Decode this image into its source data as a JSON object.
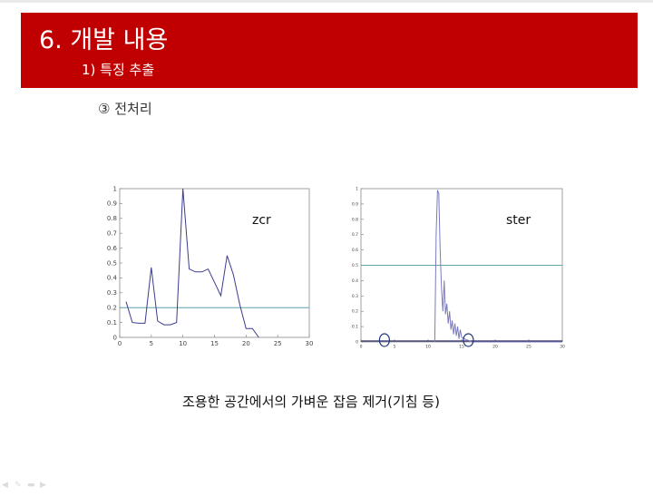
{
  "slide": {
    "title": "6. 개발 내용",
    "subtitle": "1) 특징 추출",
    "section": "③ 전처리",
    "caption": "조용한 공간에서의 가벼운 잡음 제거(기침 등)"
  },
  "chart_data": [
    {
      "type": "line",
      "name_label": "zcr",
      "x": [
        1,
        2,
        3,
        4,
        5,
        6,
        7,
        8,
        9,
        10,
        11,
        12,
        13,
        14,
        15,
        16,
        17,
        18,
        19,
        20,
        21,
        22
      ],
      "values": [
        0.24,
        0.1,
        0.095,
        0.095,
        0.47,
        0.11,
        0.085,
        0.085,
        0.1,
        1.0,
        0.46,
        0.44,
        0.44,
        0.46,
        0.37,
        0.28,
        0.55,
        0.42,
        0.22,
        0.06,
        0.06,
        0.0
      ],
      "threshold": 0.2,
      "xlim": [
        0,
        30
      ],
      "ylim": [
        0,
        1
      ],
      "xticks": [
        "0",
        "5",
        "10",
        "15",
        "20",
        "25",
        "30"
      ],
      "yticks": [
        "0",
        "0.1",
        "0.2",
        "0.3",
        "0.4",
        "0.5",
        "0.6",
        "0.7",
        "0.8",
        "0.9",
        "1"
      ],
      "colors": {
        "line": "#3b3b8f",
        "threshold": "#5fa3a8"
      },
      "highlights": []
    },
    {
      "type": "line",
      "name_label": "ster",
      "x": [
        11,
        11.2,
        11.4,
        11.6,
        11.8,
        12.0,
        12.2,
        12.4,
        12.6,
        12.8,
        13.0,
        13.2,
        13.4,
        13.6,
        13.8,
        14.0,
        14.2,
        14.4,
        14.6,
        14.8,
        15.0,
        15.4,
        16.0,
        16.5,
        17.0,
        30
      ],
      "values": [
        0.0,
        0.7,
        0.99,
        0.97,
        0.6,
        0.35,
        0.2,
        0.4,
        0.18,
        0.25,
        0.12,
        0.2,
        0.08,
        0.14,
        0.05,
        0.12,
        0.04,
        0.1,
        0.02,
        0.08,
        0.03,
        0.02,
        0.01,
        0.0,
        0.0,
        0.0
      ],
      "threshold": 0.5,
      "xlim": [
        0,
        30
      ],
      "ylim": [
        0,
        1
      ],
      "xticks": [
        "0",
        "5",
        "10",
        "15",
        "20",
        "25",
        "30"
      ],
      "yticks": [
        "0",
        "0.1",
        "0.2",
        "0.3",
        "0.4",
        "0.5",
        "0.6",
        "0.7",
        "0.8",
        "0.9",
        "1"
      ],
      "colors": {
        "line": "#7b7bbd",
        "threshold": "#5fa3a8",
        "base": "#2b2b6f",
        "circle": "#1f3a7a"
      },
      "highlights": [
        3.5,
        16
      ]
    }
  ]
}
